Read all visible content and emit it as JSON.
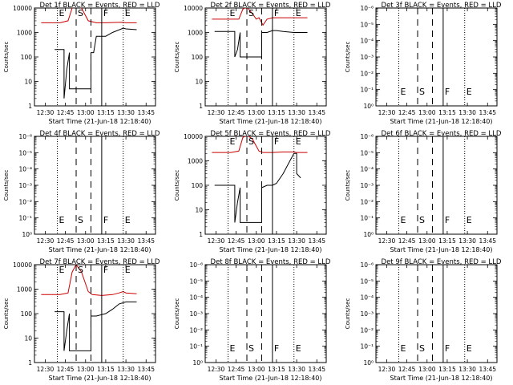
{
  "chart_data": [
    {
      "type": "line",
      "title": "Det 1f BLACK = Events, RED = LLD",
      "xlabel": "Start Time (21-Jun-18 12:18:40)",
      "ylabel": "Counts/sec",
      "xticks": [
        "12:30",
        "12:45",
        "13:00",
        "13:15",
        "13:30",
        "13:45"
      ],
      "yscale": "log",
      "yticks": [
        "1",
        "10",
        "100",
        "1000",
        "10000"
      ],
      "ylim": [
        1,
        10000
      ],
      "markers": [
        {
          "label": "E",
          "x": "12:39",
          "style": "dotted"
        },
        {
          "label": "S",
          "x": "12:53",
          "style": "dashed"
        },
        {
          "label": "",
          "x": "13:04",
          "style": "dashed"
        },
        {
          "label": "F",
          "x": "13:12",
          "style": "solid"
        },
        {
          "label": "E",
          "x": "13:28",
          "style": "dotted"
        }
      ],
      "series": [
        {
          "name": "Events",
          "color": "#000000",
          "x": [
            "12:37",
            "12:44",
            "12:44",
            "12:46",
            "12:48",
            "12:48",
            "13:04",
            "13:04",
            "13:06",
            "13:08",
            "13:15",
            "13:20",
            "13:28",
            "13:30",
            "13:38"
          ],
          "y": [
            200,
            200,
            2,
            30,
            150,
            5,
            5,
            150,
            150,
            700,
            700,
            1000,
            1500,
            1400,
            1300
          ]
        },
        {
          "name": "LLD",
          "color": "#cc0000",
          "x": [
            "12:27",
            "12:41",
            "12:47",
            "12:50",
            "12:53",
            "12:57",
            "13:02",
            "13:08",
            "13:15",
            "13:27",
            "13:30",
            "13:38"
          ],
          "y": [
            2500,
            2500,
            3000,
            10000,
            11000,
            10000,
            3000,
            2500,
            2500,
            2600,
            2500,
            2500
          ]
        }
      ]
    },
    {
      "type": "line",
      "title": "Det 2f BLACK = Events, RED = LLD",
      "xlabel": "Start Time (21-Jun-18 12:18:40)",
      "ylabel": "Counts/sec",
      "xticks": [
        "12:30",
        "12:45",
        "13:00",
        "13:15",
        "13:30",
        "13:45"
      ],
      "yscale": "log",
      "yticks": [
        "1",
        "10",
        "100",
        "1000",
        "10000"
      ],
      "ylim": [
        1,
        10000
      ],
      "markers": [
        {
          "label": "E",
          "x": "12:39",
          "style": "dotted"
        },
        {
          "label": "S",
          "x": "12:53",
          "style": "dashed"
        },
        {
          "label": "",
          "x": "13:04",
          "style": "dashed"
        },
        {
          "label": "F",
          "x": "13:12",
          "style": "solid"
        },
        {
          "label": "E",
          "x": "13:28",
          "style": "dotted"
        }
      ],
      "series": [
        {
          "name": "Events",
          "color": "#000000",
          "x": [
            "12:29",
            "12:44",
            "12:44",
            "12:46",
            "12:48",
            "12:48",
            "13:04",
            "13:04",
            "13:08",
            "13:12",
            "13:15",
            "13:20",
            "13:28",
            "13:30",
            "13:38"
          ],
          "y": [
            1100,
            1100,
            100,
            200,
            1000,
            100,
            100,
            1000,
            1000,
            1200,
            1200,
            1100,
            1000,
            1000,
            1000
          ]
        },
        {
          "name": "LLD",
          "color": "#cc0000",
          "x": [
            "12:27",
            "12:41",
            "12:47",
            "12:50",
            "12:53",
            "12:57",
            "13:00",
            "13:02",
            "13:05",
            "13:08",
            "13:12",
            "13:20",
            "13:28",
            "13:30",
            "13:38"
          ],
          "y": [
            3500,
            3500,
            3500,
            9000,
            11000,
            6000,
            3500,
            4000,
            2000,
            3500,
            4000,
            4000,
            4000,
            4000,
            4000
          ]
        }
      ]
    },
    {
      "type": "line",
      "title": "Det 3f BLACK = Events, RED = LLD",
      "xlabel": "Start Time (21-Jun-18 12:18:40)",
      "ylabel": "Counts/sec",
      "xticks": [
        "12:30",
        "12:45",
        "13:00",
        "13:15",
        "13:30",
        "13:45"
      ],
      "yscale": "log",
      "yticks": [
        "10⁰",
        "10⁻¹",
        "10⁻²",
        "10⁻³",
        "10⁻⁴",
        "10⁻⁵",
        "10⁻⁶"
      ],
      "ylim": [
        1,
        1000000
      ],
      "markers": [
        {
          "label": "E",
          "x": "12:39",
          "style": "dotted"
        },
        {
          "label": "S",
          "x": "12:53",
          "style": "dashed"
        },
        {
          "label": "",
          "x": "13:04",
          "style": "dashed"
        },
        {
          "label": "F",
          "x": "13:12",
          "style": "solid"
        },
        {
          "label": "E",
          "x": "13:28",
          "style": "dotted"
        }
      ],
      "series": []
    },
    {
      "type": "line",
      "title": "Det 4f BLACK = Events, RED = LLD",
      "xlabel": "Start Time (21-Jun-18 12:18:40)",
      "ylabel": "Counts/sec",
      "xticks": [
        "12:30",
        "12:45",
        "13:00",
        "13:15",
        "13:30",
        "13:45"
      ],
      "yscale": "log",
      "yticks": [
        "10⁰",
        "10⁻¹",
        "10⁻²",
        "10⁻³",
        "10⁻⁴",
        "10⁻⁵",
        "10⁻⁶"
      ],
      "ylim": [
        1,
        1000000
      ],
      "markers": [
        {
          "label": "E",
          "x": "12:39",
          "style": "dotted"
        },
        {
          "label": "S",
          "x": "12:53",
          "style": "dashed"
        },
        {
          "label": "",
          "x": "13:04",
          "style": "dashed"
        },
        {
          "label": "F",
          "x": "13:12",
          "style": "solid"
        },
        {
          "label": "E",
          "x": "13:28",
          "style": "dotted"
        }
      ],
      "series": []
    },
    {
      "type": "line",
      "title": "Det 5f BLACK = Events, RED = LLD",
      "xlabel": "Start Time (21-Jun-18 12:18:40)",
      "ylabel": "Counts/sec",
      "xticks": [
        "12:30",
        "12:45",
        "13:00",
        "13:15",
        "13:30",
        "13:45"
      ],
      "yscale": "log",
      "yticks": [
        "1",
        "10",
        "100",
        "1000",
        "10000"
      ],
      "ylim": [
        1,
        10000
      ],
      "markers": [
        {
          "label": "E",
          "x": "12:39",
          "style": "dotted"
        },
        {
          "label": "S",
          "x": "12:53",
          "style": "dashed"
        },
        {
          "label": "",
          "x": "13:04",
          "style": "dashed"
        },
        {
          "label": "F",
          "x": "13:12",
          "style": "solid"
        },
        {
          "label": "E",
          "x": "13:28",
          "style": "dotted"
        }
      ],
      "series": [
        {
          "name": "Events",
          "color": "#000000",
          "x": [
            "12:29",
            "12:44",
            "12:44",
            "12:46",
            "12:48",
            "12:48",
            "13:04",
            "13:04",
            "13:08",
            "13:12",
            "13:15",
            "13:20",
            "13:25",
            "13:28",
            "13:30",
            "13:30",
            "13:33"
          ],
          "y": [
            100,
            100,
            3,
            20,
            80,
            3,
            3,
            80,
            100,
            100,
            120,
            300,
            1000,
            2000,
            2000,
            300,
            200
          ]
        },
        {
          "name": "LLD",
          "color": "#cc0000",
          "x": [
            "12:27",
            "12:41",
            "12:47",
            "12:50",
            "12:53",
            "12:57",
            "13:02",
            "13:05",
            "13:12",
            "13:20",
            "13:28",
            "13:30",
            "13:38"
          ],
          "y": [
            2200,
            2200,
            2500,
            9000,
            11000,
            8000,
            2500,
            2200,
            2200,
            2300,
            2300,
            2200,
            2200
          ]
        }
      ]
    },
    {
      "type": "line",
      "title": "Det 6f BLACK = Events, RED = LLD",
      "xlabel": "Start Time (21-Jun-18 12:18:40)",
      "ylabel": "Counts/sec",
      "xticks": [
        "12:30",
        "12:45",
        "13:00",
        "13:15",
        "13:30",
        "13:45"
      ],
      "yscale": "log",
      "yticks": [
        "10⁰",
        "10⁻¹",
        "10⁻²",
        "10⁻³",
        "10⁻⁴",
        "10⁻⁵",
        "10⁻⁶"
      ],
      "ylim": [
        1,
        1000000
      ],
      "markers": [
        {
          "label": "E",
          "x": "12:39",
          "style": "dotted"
        },
        {
          "label": "S",
          "x": "12:53",
          "style": "dashed"
        },
        {
          "label": "",
          "x": "13:04",
          "style": "dashed"
        },
        {
          "label": "F",
          "x": "13:12",
          "style": "solid"
        },
        {
          "label": "E",
          "x": "13:28",
          "style": "dotted"
        }
      ],
      "series": []
    },
    {
      "type": "line",
      "title": "Det 7f BLACK = Events, RED = LLD",
      "xlabel": "Start Time (21-Jun-18 12:18:40)",
      "ylabel": "Counts/sec",
      "xticks": [
        "12:30",
        "12:45",
        "13:00",
        "13:15",
        "13:30",
        "13:45"
      ],
      "yscale": "log",
      "yticks": [
        "1",
        "10",
        "100",
        "1000",
        "10000"
      ],
      "ylim": [
        1,
        10000
      ],
      "markers": [
        {
          "label": "E",
          "x": "12:39",
          "style": "dotted"
        },
        {
          "label": "S",
          "x": "12:53",
          "style": "dashed"
        },
        {
          "label": "",
          "x": "13:04",
          "style": "dashed"
        },
        {
          "label": "F",
          "x": "13:12",
          "style": "solid"
        },
        {
          "label": "E",
          "x": "13:28",
          "style": "dotted"
        }
      ],
      "series": [
        {
          "name": "Events",
          "color": "#000000",
          "x": [
            "12:37",
            "12:44",
            "12:44",
            "12:46",
            "12:48",
            "12:48",
            "13:04",
            "13:04",
            "13:08",
            "13:15",
            "13:20",
            "13:25",
            "13:30",
            "13:38"
          ],
          "y": [
            120,
            120,
            3,
            20,
            100,
            3,
            3,
            80,
            80,
            100,
            150,
            250,
            300,
            300
          ]
        },
        {
          "name": "LLD",
          "color": "#cc0000",
          "x": [
            "12:27",
            "12:41",
            "12:47",
            "12:50",
            "12:53",
            "12:57",
            "13:02",
            "13:05",
            "13:12",
            "13:20",
            "13:25",
            "13:28",
            "13:30",
            "13:38"
          ],
          "y": [
            600,
            600,
            700,
            5000,
            10000,
            5000,
            800,
            600,
            550,
            600,
            700,
            800,
            700,
            650
          ]
        }
      ]
    },
    {
      "type": "line",
      "title": "Det 8f BLACK = Events, RED = LLD",
      "xlabel": "Start Time (21-Jun-18 12:18:40)",
      "ylabel": "Counts/sec",
      "xticks": [
        "12:30",
        "12:45",
        "13:00",
        "13:15",
        "13:30",
        "13:45"
      ],
      "yscale": "log",
      "yticks": [
        "10⁰",
        "10⁻¹",
        "10⁻²",
        "10⁻³",
        "10⁻⁴",
        "10⁻⁵",
        "10⁻⁶"
      ],
      "ylim": [
        1,
        1000000
      ],
      "markers": [
        {
          "label": "E",
          "x": "12:39",
          "style": "dotted"
        },
        {
          "label": "S",
          "x": "12:53",
          "style": "dashed"
        },
        {
          "label": "",
          "x": "13:04",
          "style": "dashed"
        },
        {
          "label": "F",
          "x": "13:12",
          "style": "solid"
        },
        {
          "label": "E",
          "x": "13:28",
          "style": "dotted"
        }
      ],
      "series": []
    },
    {
      "type": "line",
      "title": "Det 9f BLACK = Events, RED = LLD",
      "xlabel": "Start Time (21-Jun-18 12:18:40)",
      "ylabel": "Counts/sec",
      "xticks": [
        "12:30",
        "12:45",
        "13:00",
        "13:15",
        "13:30",
        "13:45"
      ],
      "yscale": "log",
      "yticks": [
        "10⁰",
        "10⁻¹",
        "10⁻²",
        "10⁻³",
        "10⁻⁴",
        "10⁻⁵",
        "10⁻⁶"
      ],
      "ylim": [
        1,
        1000000
      ],
      "markers": [
        {
          "label": "E",
          "x": "12:39",
          "style": "dotted"
        },
        {
          "label": "S",
          "x": "12:53",
          "style": "dashed"
        },
        {
          "label": "",
          "x": "13:04",
          "style": "dashed"
        },
        {
          "label": "F",
          "x": "13:12",
          "style": "solid"
        },
        {
          "label": "E",
          "x": "13:28",
          "style": "dotted"
        }
      ],
      "series": []
    }
  ]
}
